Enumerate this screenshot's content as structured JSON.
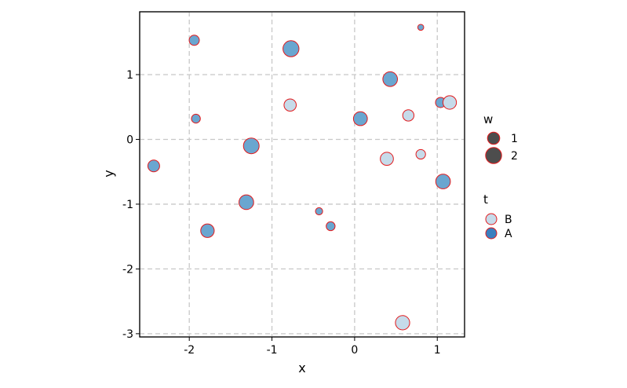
{
  "chart_data": {
    "type": "scatter",
    "title": "",
    "xlabel": "x",
    "ylabel": "y",
    "xlim": [
      -2.6,
      1.33
    ],
    "ylim": [
      -3.05,
      1.97
    ],
    "x_ticks": [
      -2,
      -1,
      0,
      1
    ],
    "y_ticks": [
      -3,
      -2,
      -1,
      0,
      1
    ],
    "x_tick_labels": [
      "-2",
      "-1",
      "0",
      "1"
    ],
    "y_tick_labels": [
      "-3",
      "-2",
      "-1",
      "0",
      "1"
    ],
    "grid": true,
    "legend_placement": "right",
    "colors": {
      "A": "#6aa6d0",
      "B": "#c6dbea",
      "edge": "#e31a1c",
      "legend_size_fill": "#4d4d4d",
      "legend_A": "#3a7fbf",
      "legend_B": "#c6dbea"
    },
    "legend_size": {
      "title": "w",
      "entries": [
        {
          "label": "1",
          "value": 1
        },
        {
          "label": "2",
          "value": 2
        }
      ]
    },
    "legend_color": {
      "title": "t",
      "entries": [
        {
          "label": "B",
          "key": "B"
        },
        {
          "label": "A",
          "key": "A"
        }
      ]
    },
    "points": [
      {
        "x": -1.94,
        "y": 1.53,
        "w": 0.6,
        "t": "A"
      },
      {
        "x": -0.77,
        "y": 1.4,
        "w": 2.0,
        "t": "A"
      },
      {
        "x": 0.8,
        "y": 1.73,
        "w": 0.1,
        "t": "A"
      },
      {
        "x": 0.43,
        "y": 0.93,
        "w": 1.6,
        "t": "A"
      },
      {
        "x": -0.78,
        "y": 0.53,
        "w": 1.0,
        "t": "B"
      },
      {
        "x": 1.04,
        "y": 0.57,
        "w": 0.6,
        "t": "A"
      },
      {
        "x": 1.15,
        "y": 0.57,
        "w": 1.3,
        "t": "B"
      },
      {
        "x": -1.92,
        "y": 0.32,
        "w": 0.4,
        "t": "A"
      },
      {
        "x": 0.07,
        "y": 0.32,
        "w": 1.4,
        "t": "A"
      },
      {
        "x": 0.65,
        "y": 0.37,
        "w": 0.8,
        "t": "B"
      },
      {
        "x": -1.25,
        "y": -0.1,
        "w": 1.9,
        "t": "A"
      },
      {
        "x": 0.8,
        "y": -0.23,
        "w": 0.5,
        "t": "B"
      },
      {
        "x": -2.43,
        "y": -0.41,
        "w": 0.9,
        "t": "A"
      },
      {
        "x": 0.39,
        "y": -0.3,
        "w": 1.2,
        "t": "B"
      },
      {
        "x": 1.07,
        "y": -0.65,
        "w": 1.6,
        "t": "A"
      },
      {
        "x": -1.31,
        "y": -0.97,
        "w": 1.6,
        "t": "A"
      },
      {
        "x": -0.43,
        "y": -1.11,
        "w": 0.2,
        "t": "A"
      },
      {
        "x": -1.78,
        "y": -1.41,
        "w": 1.3,
        "t": "A"
      },
      {
        "x": -0.29,
        "y": -1.34,
        "w": 0.4,
        "t": "A"
      },
      {
        "x": 0.58,
        "y": -2.83,
        "w": 1.5,
        "t": "B"
      }
    ]
  }
}
